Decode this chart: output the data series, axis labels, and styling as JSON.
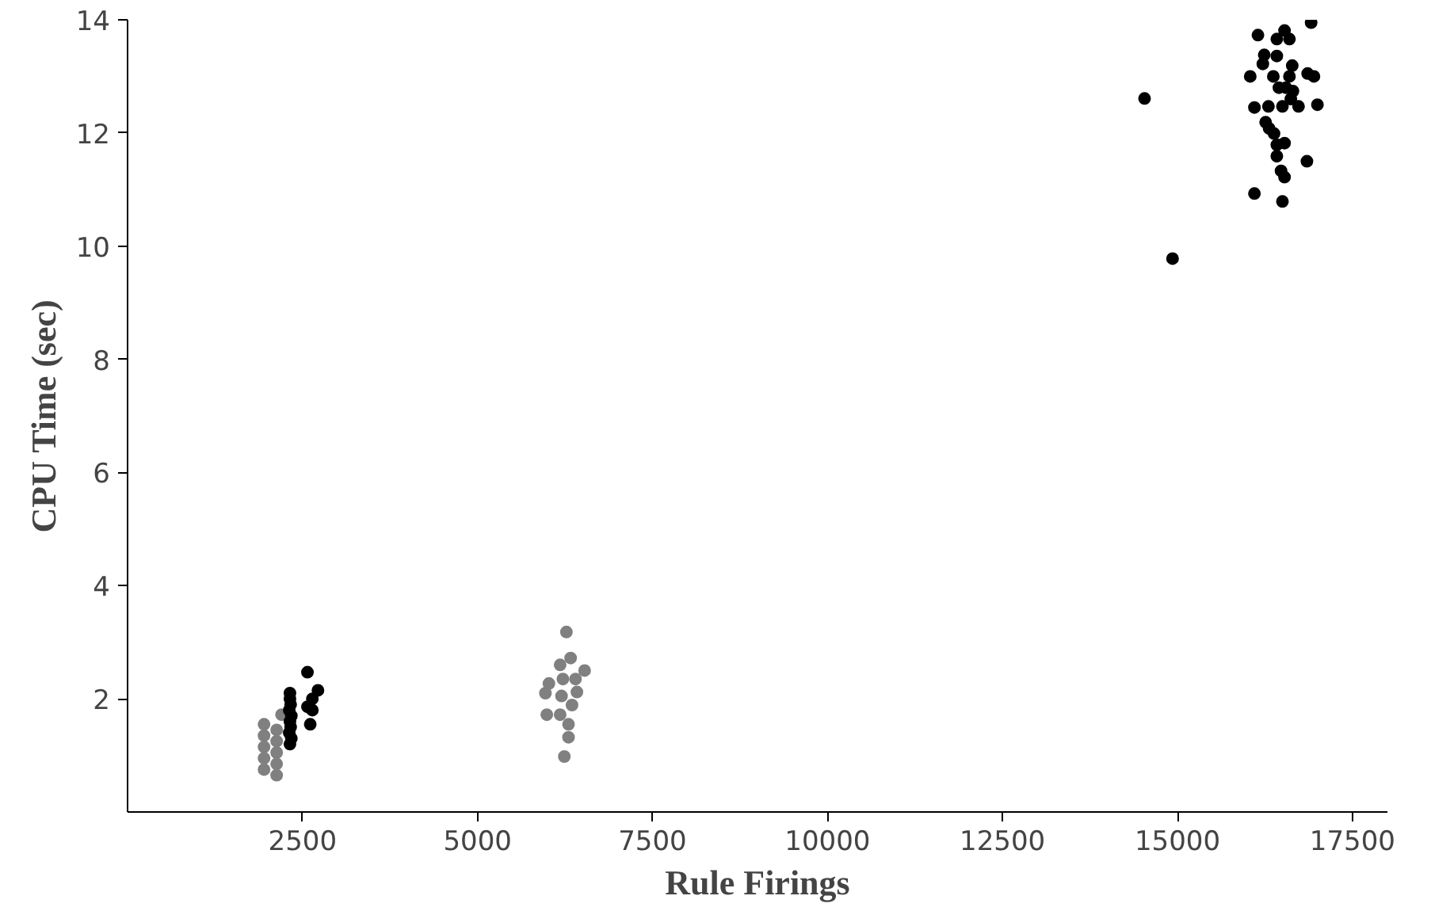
{
  "chart_data": {
    "type": "scatter",
    "xlabel": "Rule Firings",
    "ylabel": "CPU Time (sec)",
    "xlim": [
      0,
      18000
    ],
    "ylim": [
      0,
      14
    ],
    "xticks": [
      2500,
      5000,
      7500,
      10000,
      12500,
      15000,
      17500
    ],
    "yticks": [
      2,
      4,
      6,
      8,
      10,
      12,
      14
    ],
    "grid": false,
    "marker": "circle",
    "series": [
      {
        "color": "#808080",
        "x": [
          1950,
          2130,
          1950,
          2130,
          1950,
          2130,
          1950,
          2130,
          1950,
          2130,
          2200,
          6270,
          6330,
          6530,
          6180,
          6020,
          5970,
          5990,
          6180,
          6420,
          6350,
          6300,
          6240,
          6220,
          6400,
          6200,
          6300
        ],
        "values": [
          1.55,
          1.45,
          1.35,
          1.25,
          1.15,
          1.05,
          0.95,
          0.85,
          0.75,
          0.65,
          1.72,
          3.18,
          2.72,
          2.5,
          2.6,
          2.27,
          2.1,
          1.72,
          1.72,
          2.12,
          1.89,
          1.32,
          0.98,
          2.35,
          2.35,
          2.05,
          1.55
        ]
      },
      {
        "color": "#000000",
        "x": [
          2320,
          2320,
          2330,
          2310,
          2340,
          2320,
          2330,
          2310,
          2340,
          2320,
          2570,
          2720,
          2640,
          2570,
          2640,
          2610,
          14930,
          14530,
          16910,
          16150,
          16530,
          16420,
          16600,
          16240,
          16420,
          16220,
          16640,
          16040,
          16370,
          16600,
          16860,
          16950,
          16450,
          16550,
          16650,
          16620,
          16100,
          16300,
          16500,
          16730,
          17000,
          16260,
          16310,
          16380,
          16420,
          16530,
          16420,
          16850,
          16480,
          16530,
          16100,
          16500
        ],
        "values": [
          2.1,
          2.0,
          1.9,
          1.8,
          1.7,
          1.6,
          1.5,
          1.4,
          1.3,
          1.2,
          2.47,
          2.15,
          2.0,
          1.86,
          1.8,
          1.55,
          9.78,
          12.61,
          13.95,
          13.73,
          13.81,
          13.66,
          13.66,
          13.38,
          13.36,
          13.22,
          13.19,
          13.0,
          13.0,
          13.0,
          13.05,
          13.0,
          12.8,
          12.8,
          12.74,
          12.6,
          12.45,
          12.47,
          12.47,
          12.47,
          12.5,
          12.19,
          12.08,
          11.99,
          11.79,
          11.82,
          11.59,
          11.5,
          11.33,
          11.22,
          10.93,
          10.79
        ]
      }
    ]
  }
}
